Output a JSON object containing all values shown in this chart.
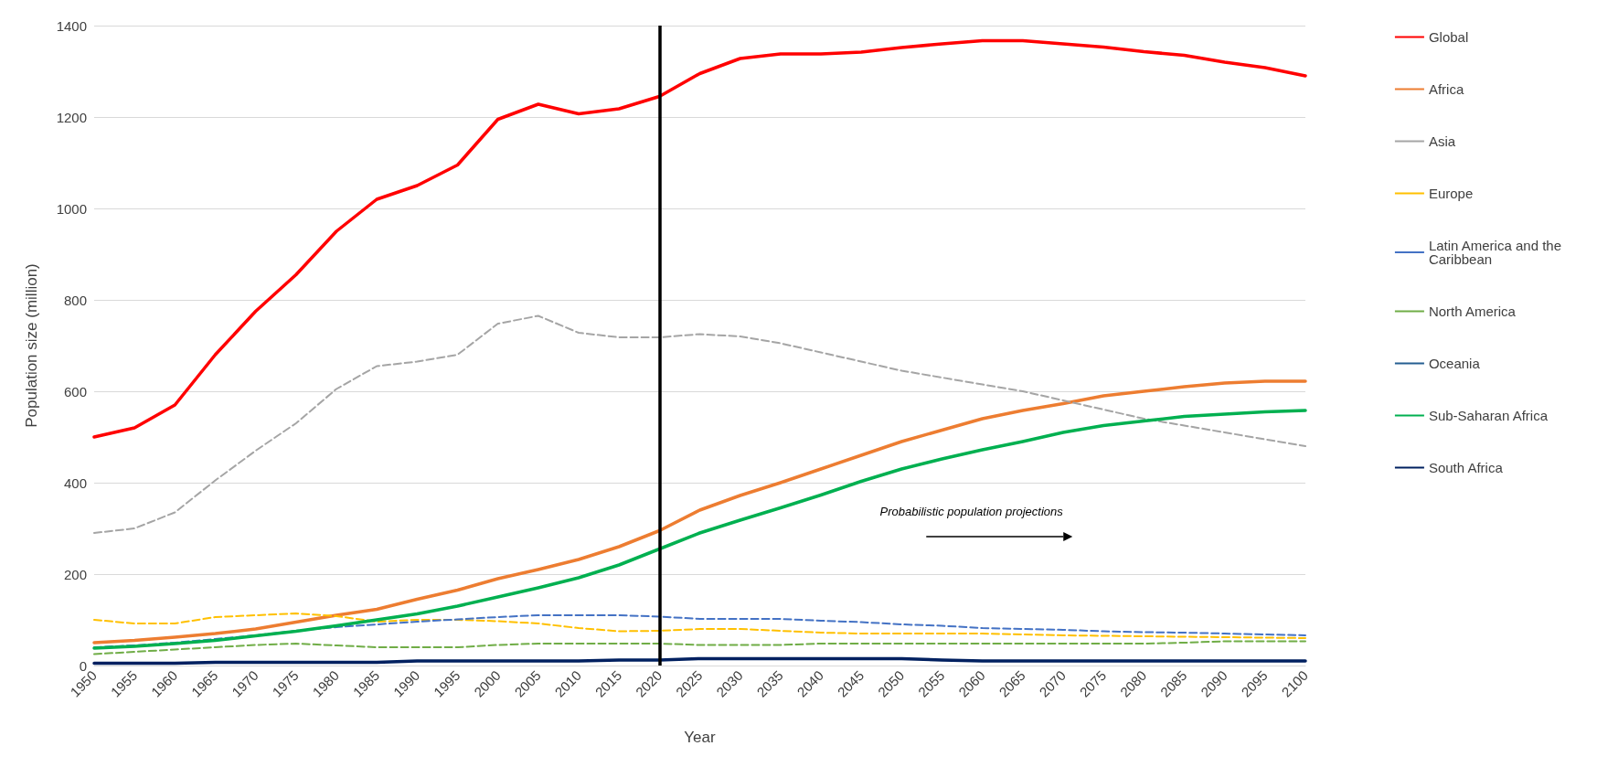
{
  "chart_data": {
    "type": "line",
    "xlabel": "Year",
    "ylabel": "Population size (million)",
    "categories": [
      "1950",
      "1955",
      "1960",
      "1965",
      "1970",
      "1975",
      "1980",
      "1985",
      "1990",
      "1995",
      "2000",
      "2005",
      "2010",
      "2015",
      "2020",
      "2025",
      "2030",
      "2035",
      "2040",
      "2045",
      "2050",
      "2055",
      "2060",
      "2065",
      "2070",
      "2075",
      "2080",
      "2085",
      "2090",
      "2095",
      "2100"
    ],
    "series": [
      {
        "name": "Global",
        "color": "#ff0000",
        "line_style": "solid",
        "values": [
          500,
          520,
          570,
          680,
          775,
          855,
          950,
          1020,
          1050,
          1095,
          1195,
          1228,
          1207,
          1218,
          1245,
          1295,
          1328,
          1338,
          1338,
          1342,
          1352,
          1360,
          1367,
          1367,
          1360,
          1353,
          1343,
          1335,
          1320,
          1308,
          1290
        ]
      },
      {
        "name": "Africa",
        "color": "#ed7d31",
        "line_style": "solid",
        "values": [
          50,
          55,
          62,
          70,
          80,
          95,
          110,
          123,
          145,
          165,
          190,
          210,
          232,
          260,
          295,
          340,
          372,
          400,
          430,
          460,
          490,
          515,
          540,
          558,
          573,
          590,
          600,
          610,
          618,
          622,
          622
        ]
      },
      {
        "name": "Asia",
        "color": "#a5a5a5",
        "line_style": "dashed",
        "values": [
          290,
          300,
          335,
          405,
          470,
          530,
          605,
          655,
          665,
          680,
          748,
          765,
          728,
          718,
          718,
          725,
          720,
          705,
          685,
          665,
          645,
          630,
          615,
          600,
          580,
          560,
          540,
          525,
          510,
          495,
          480
        ]
      },
      {
        "name": "Europe",
        "color": "#ffc000",
        "line_style": "dashed",
        "values": [
          100,
          92,
          92,
          106,
          110,
          114,
          108,
          96,
          100,
          100,
          97,
          92,
          82,
          75,
          76,
          80,
          80,
          76,
          72,
          70,
          70,
          70,
          70,
          68,
          66,
          65,
          64,
          63,
          62,
          61,
          60
        ]
      },
      {
        "name": "Latin America and the Caribbean",
        "color": "#4472c4",
        "line_style": "dashed",
        "values": [
          40,
          44,
          50,
          58,
          66,
          76,
          84,
          90,
          96,
          101,
          106,
          110,
          110,
          110,
          107,
          102,
          102,
          102,
          98,
          95,
          90,
          87,
          82,
          80,
          78,
          75,
          73,
          72,
          70,
          68,
          66
        ]
      },
      {
        "name": "North America",
        "color": "#70ad47",
        "line_style": "dashed",
        "values": [
          25,
          30,
          35,
          40,
          45,
          48,
          44,
          40,
          40,
          40,
          45,
          48,
          48,
          48,
          48,
          45,
          45,
          45,
          48,
          48,
          48,
          48,
          48,
          48,
          48,
          48,
          48,
          50,
          53,
          53,
          53
        ]
      },
      {
        "name": "Oceania",
        "color": "#255e91",
        "line_style": "solid",
        "values": [
          null,
          null,
          null,
          null,
          null,
          null,
          null,
          null,
          null,
          null,
          null,
          null,
          null,
          null,
          null,
          null,
          null,
          null,
          null,
          null,
          null,
          null,
          null,
          null,
          null,
          null,
          null,
          null,
          null,
          null,
          null
        ]
      },
      {
        "name": "Sub-Saharan Africa",
        "color": "#00b050",
        "line_style": "solid",
        "values": [
          38,
          42,
          48,
          55,
          65,
          75,
          87,
          100,
          113,
          130,
          150,
          170,
          192,
          220,
          255,
          290,
          318,
          345,
          373,
          403,
          430,
          452,
          472,
          490,
          510,
          525,
          535,
          545,
          550,
          555,
          558
        ]
      },
      {
        "name": "South Africa",
        "color": "#002060",
        "line_style": "solid",
        "values": [
          5,
          5,
          5,
          7,
          7,
          7,
          7,
          7,
          10,
          10,
          10,
          10,
          10,
          12,
          12,
          15,
          15,
          15,
          15,
          15,
          15,
          12,
          10,
          10,
          10,
          10,
          10,
          10,
          10,
          10,
          10
        ]
      }
    ],
    "ylim": [
      0,
      1400
    ],
    "yticks": [
      0,
      200,
      400,
      600,
      800,
      1000,
      1200,
      1400
    ],
    "grid": "y",
    "legend": "right",
    "marker": "none",
    "ref_lines": [
      {
        "axis": "x",
        "value": "2020",
        "color": "#000000",
        "line_style": "solid"
      }
    ],
    "annotations": [
      "Probabilistic population projections"
    ]
  }
}
